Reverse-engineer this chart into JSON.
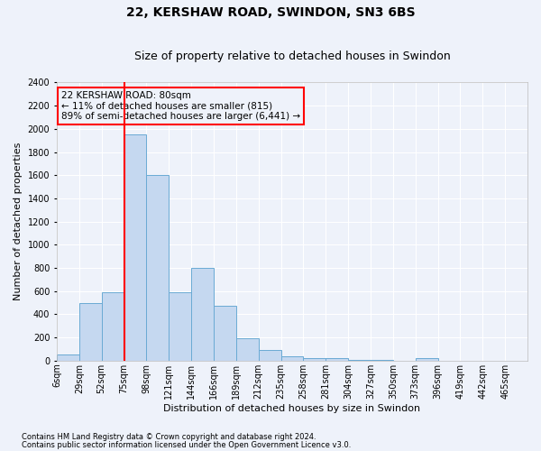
{
  "title": "22, KERSHAW ROAD, SWINDON, SN3 6BS",
  "subtitle": "Size of property relative to detached houses in Swindon",
  "xlabel": "Distribution of detached houses by size in Swindon",
  "ylabel": "Number of detached properties",
  "footnote1": "Contains HM Land Registry data © Crown copyright and database right 2024.",
  "footnote2": "Contains public sector information licensed under the Open Government Licence v3.0.",
  "annotation_title": "22 KERSHAW ROAD: 80sqm",
  "annotation_line1": "← 11% of detached houses are smaller (815)",
  "annotation_line2": "89% of semi-detached houses are larger (6,441) →",
  "bar_color": "#c5d8f0",
  "bar_edge_color": "#6aaad4",
  "redline_category_index": 3,
  "ylim": [
    0,
    2400
  ],
  "yticks": [
    0,
    200,
    400,
    600,
    800,
    1000,
    1200,
    1400,
    1600,
    1800,
    2000,
    2200,
    2400
  ],
  "categories": [
    "6sqm",
    "29sqm",
    "52sqm",
    "75sqm",
    "98sqm",
    "121sqm",
    "144sqm",
    "166sqm",
    "189sqm",
    "212sqm",
    "235sqm",
    "258sqm",
    "281sqm",
    "304sqm",
    "327sqm",
    "350sqm",
    "373sqm",
    "396sqm",
    "419sqm",
    "442sqm",
    "465sqm"
  ],
  "values": [
    50,
    500,
    590,
    1950,
    1600,
    590,
    800,
    470,
    190,
    90,
    35,
    20,
    20,
    5,
    5,
    0,
    20,
    0,
    0,
    0,
    0
  ],
  "background_color": "#eef2fa",
  "grid_color": "#ffffff",
  "title_fontsize": 10,
  "subtitle_fontsize": 9,
  "axis_label_fontsize": 8,
  "tick_fontsize": 7,
  "annotation_fontsize": 7.5,
  "footnote_fontsize": 6
}
